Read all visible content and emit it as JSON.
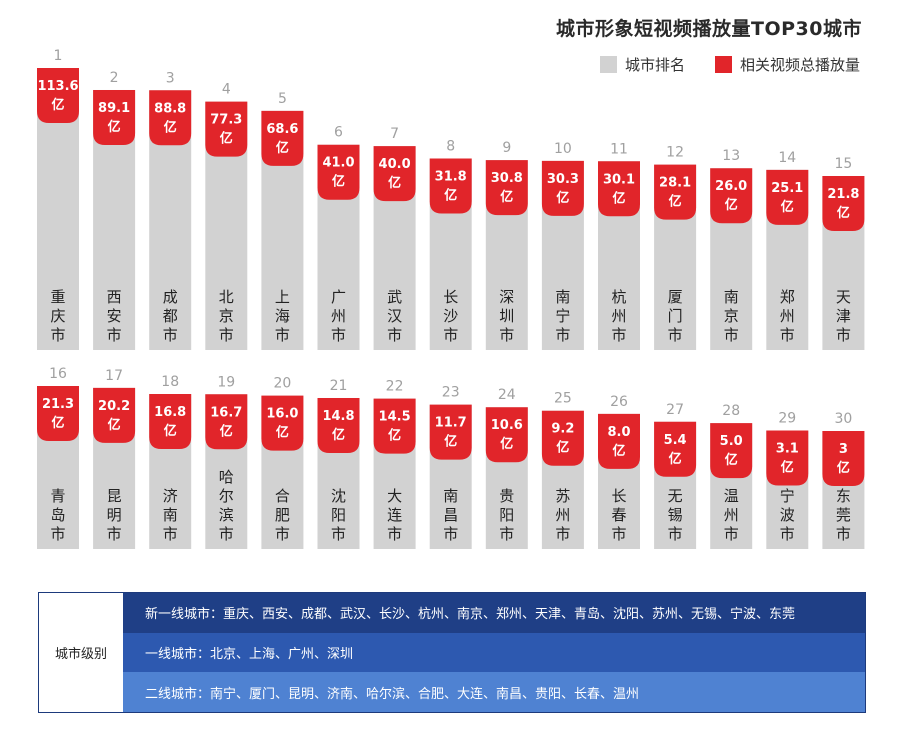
{
  "chart_data": {
    "type": "bar",
    "title": "城市形象短视频播放量TOP30城市",
    "legend": {
      "rank_label": "城市排名",
      "views_label": "相关视频总播放量",
      "placement": "top-right"
    },
    "colors": {
      "rank_bar": "#d2d2d2",
      "views_bar": "#e1252a"
    },
    "unit": "亿",
    "ranks": [
      "1",
      "2",
      "3",
      "4",
      "5",
      "6",
      "7",
      "8",
      "9",
      "10",
      "11",
      "12",
      "13",
      "14",
      "15",
      "16",
      "17",
      "18",
      "19",
      "20",
      "21",
      "22",
      "23",
      "24",
      "25",
      "26",
      "27",
      "28",
      "29",
      "30"
    ],
    "categories": [
      "重庆市",
      "西安市",
      "成都市",
      "北京市",
      "上海市",
      "广州市",
      "武汉市",
      "长沙市",
      "深圳市",
      "南宁市",
      "杭州市",
      "厦门市",
      "南京市",
      "郑州市",
      "天津市",
      "青岛市",
      "昆明市",
      "济南市",
      "哈尔滨市",
      "合肥市",
      "沈阳市",
      "大连市",
      "南昌市",
      "贵阳市",
      "苏州市",
      "长春市",
      "无锡市",
      "温州市",
      "宁波市",
      "东莞市"
    ],
    "value_labels": [
      "113.6",
      "89.1",
      "88.8",
      "77.3",
      "68.6",
      "41.0",
      "40.0",
      "31.8",
      "30.8",
      "30.3",
      "30.1",
      "28.1",
      "26.0",
      "25.1",
      "21.8",
      "21.3",
      "20.2",
      "16.8",
      "16.7",
      "16.0",
      "14.8",
      "14.5",
      "11.7",
      "10.6",
      "9.2",
      "8.0",
      "5.4",
      "5.0",
      "3.1",
      "3"
    ],
    "series": [
      {
        "name": "相关视频总播放量",
        "values": [
          113.6,
          89.1,
          88.8,
          77.3,
          68.6,
          41.0,
          40.0,
          31.8,
          30.8,
          30.3,
          30.1,
          28.1,
          26.0,
          25.1,
          21.8,
          21.3,
          20.2,
          16.8,
          16.7,
          16.0,
          14.8,
          14.5,
          11.7,
          10.6,
          9.2,
          8.0,
          5.4,
          5.0,
          3.1,
          3
        ]
      }
    ]
  },
  "tiers": {
    "label": "城市级别",
    "new_first": "新一线城市：重庆、西安、成都、武汉、长沙、杭州、南京、郑州、天津、青岛、沈阳、苏州、无锡、宁波、东莞",
    "first": "一线城市：北京、上海、广州、深圳",
    "second": "二线城市：南宁、厦门、昆明、济南、哈尔滨、合肥、大连、南昌、贵阳、长春、温州"
  }
}
